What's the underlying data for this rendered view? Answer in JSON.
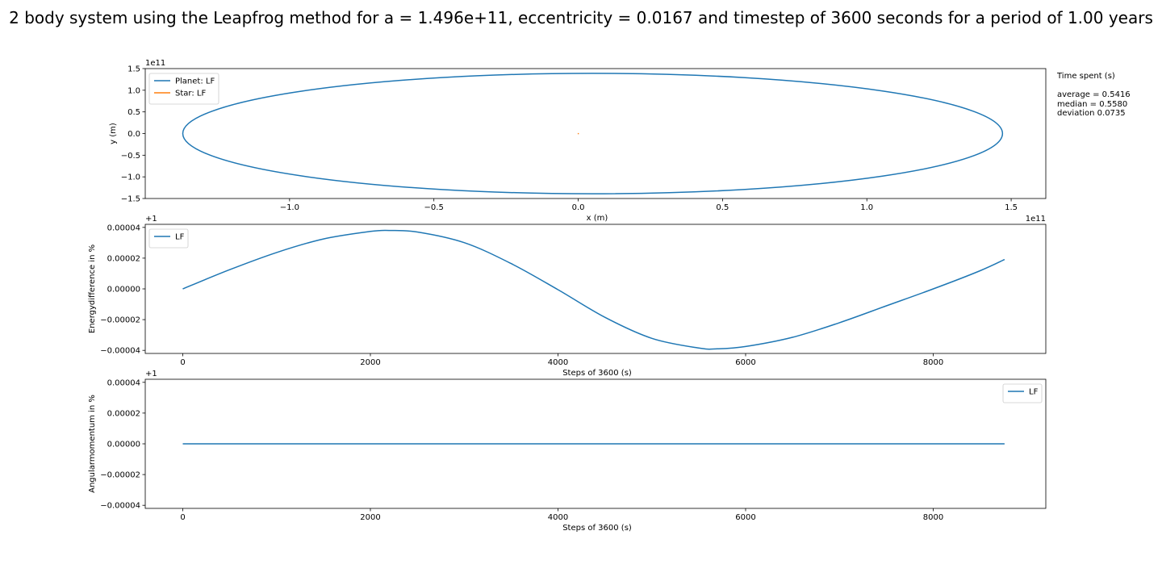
{
  "figure": {
    "title": "2 body system using the Leapfrog method for a = 1.496e+11, eccentricity = 0.0167 and timestep of 3600 seconds for a period of 1.00 years"
  },
  "stats": {
    "heading": "Time spent (s)",
    "average": "average = 0.5416",
    "median": "median = 0.5580",
    "deviation": "deviation 0.0735"
  },
  "colors": {
    "planet": "#1f77b4",
    "star": "#ff7f0e",
    "lf": "#1f77b4"
  },
  "chart_data": [
    {
      "id": "orbit",
      "type": "line",
      "xlabel": "x (m)",
      "ylabel": "y (m)",
      "x_offset_label": "1e11",
      "y_offset_label": "1e11",
      "xlim": [
        -1.5,
        1.62
      ],
      "ylim": [
        -1.5,
        1.5
      ],
      "xticks": [
        -1.0,
        -0.5,
        0.0,
        0.5,
        1.0,
        1.5
      ],
      "xtick_labels": [
        "−1.0",
        "−0.5",
        "0.0",
        "0.5",
        "1.0",
        "1.5"
      ],
      "yticks": [
        1.5,
        1.0,
        0.5,
        0.0,
        -0.5,
        -1.0,
        -1.5
      ],
      "ytick_labels": [
        "1.5",
        "1.0",
        "0.5",
        "0.0",
        "−0.5",
        "−1.0",
        "−1.5"
      ],
      "legend": "top-left",
      "series": [
        {
          "name": "Planet: LF",
          "color": "#1f77b4",
          "kind": "ellipse",
          "cx": 0.05,
          "cy": 0.0,
          "rx": 1.42,
          "ry": 1.39
        },
        {
          "name": "Star: LF",
          "color": "#ff7f0e",
          "kind": "point",
          "x": 0.0,
          "y": 0.0
        }
      ]
    },
    {
      "id": "energy",
      "type": "line",
      "xlabel": "Steps of 3600 (s)",
      "ylabel": "Energydifference in %",
      "y_offset_label": "+1",
      "xlim": [
        -400,
        9200
      ],
      "ylim": [
        -4.2e-05,
        4.2e-05
      ],
      "xticks": [
        0,
        2000,
        4000,
        6000,
        8000
      ],
      "xtick_labels": [
        "0",
        "2000",
        "4000",
        "6000",
        "8000"
      ],
      "yticks": [
        4e-05,
        2e-05,
        0.0,
        -2e-05,
        -4e-05
      ],
      "ytick_labels": [
        "0.00004",
        "0.00002",
        "0.00000",
        "−0.00002",
        "−0.00004"
      ],
      "legend": "top-left",
      "series": [
        {
          "name": "LF",
          "color": "#1f77b4",
          "x": [
            0,
            500,
            1000,
            1500,
            2000,
            2200,
            2500,
            3000,
            3500,
            4000,
            4500,
            5000,
            5500,
            5700,
            6000,
            6500,
            7000,
            7500,
            8000,
            8500,
            8760
          ],
          "y": [
            0.0,
            0.0125,
            0.0237,
            0.0325,
            0.0374,
            0.038,
            0.037,
            0.0301,
            0.0165,
            -0.0005,
            -0.0185,
            -0.0322,
            -0.0385,
            -0.039,
            -0.0375,
            -0.0315,
            -0.022,
            -0.011,
            0.0,
            0.0118,
            0.0191
          ]
        }
      ]
    },
    {
      "id": "angular",
      "type": "line",
      "xlabel": "Steps of 3600 (s)",
      "ylabel": "Angularmomentum in  %",
      "y_offset_label": "+1",
      "xlim": [
        -400,
        9200
      ],
      "ylim": [
        -4.2e-05,
        4.2e-05
      ],
      "xticks": [
        0,
        2000,
        4000,
        6000,
        8000
      ],
      "xtick_labels": [
        "0",
        "2000",
        "4000",
        "6000",
        "8000"
      ],
      "yticks": [
        4e-05,
        2e-05,
        0.0,
        -2e-05,
        -4e-05
      ],
      "ytick_labels": [
        "0.00004",
        "0.00002",
        "0.00000",
        "−0.00002",
        "−0.00004"
      ],
      "legend": "top-right",
      "series": [
        {
          "name": "LF",
          "color": "#1f77b4",
          "x": [
            0,
            8760
          ],
          "y": [
            0.0,
            0.0
          ]
        }
      ]
    }
  ]
}
